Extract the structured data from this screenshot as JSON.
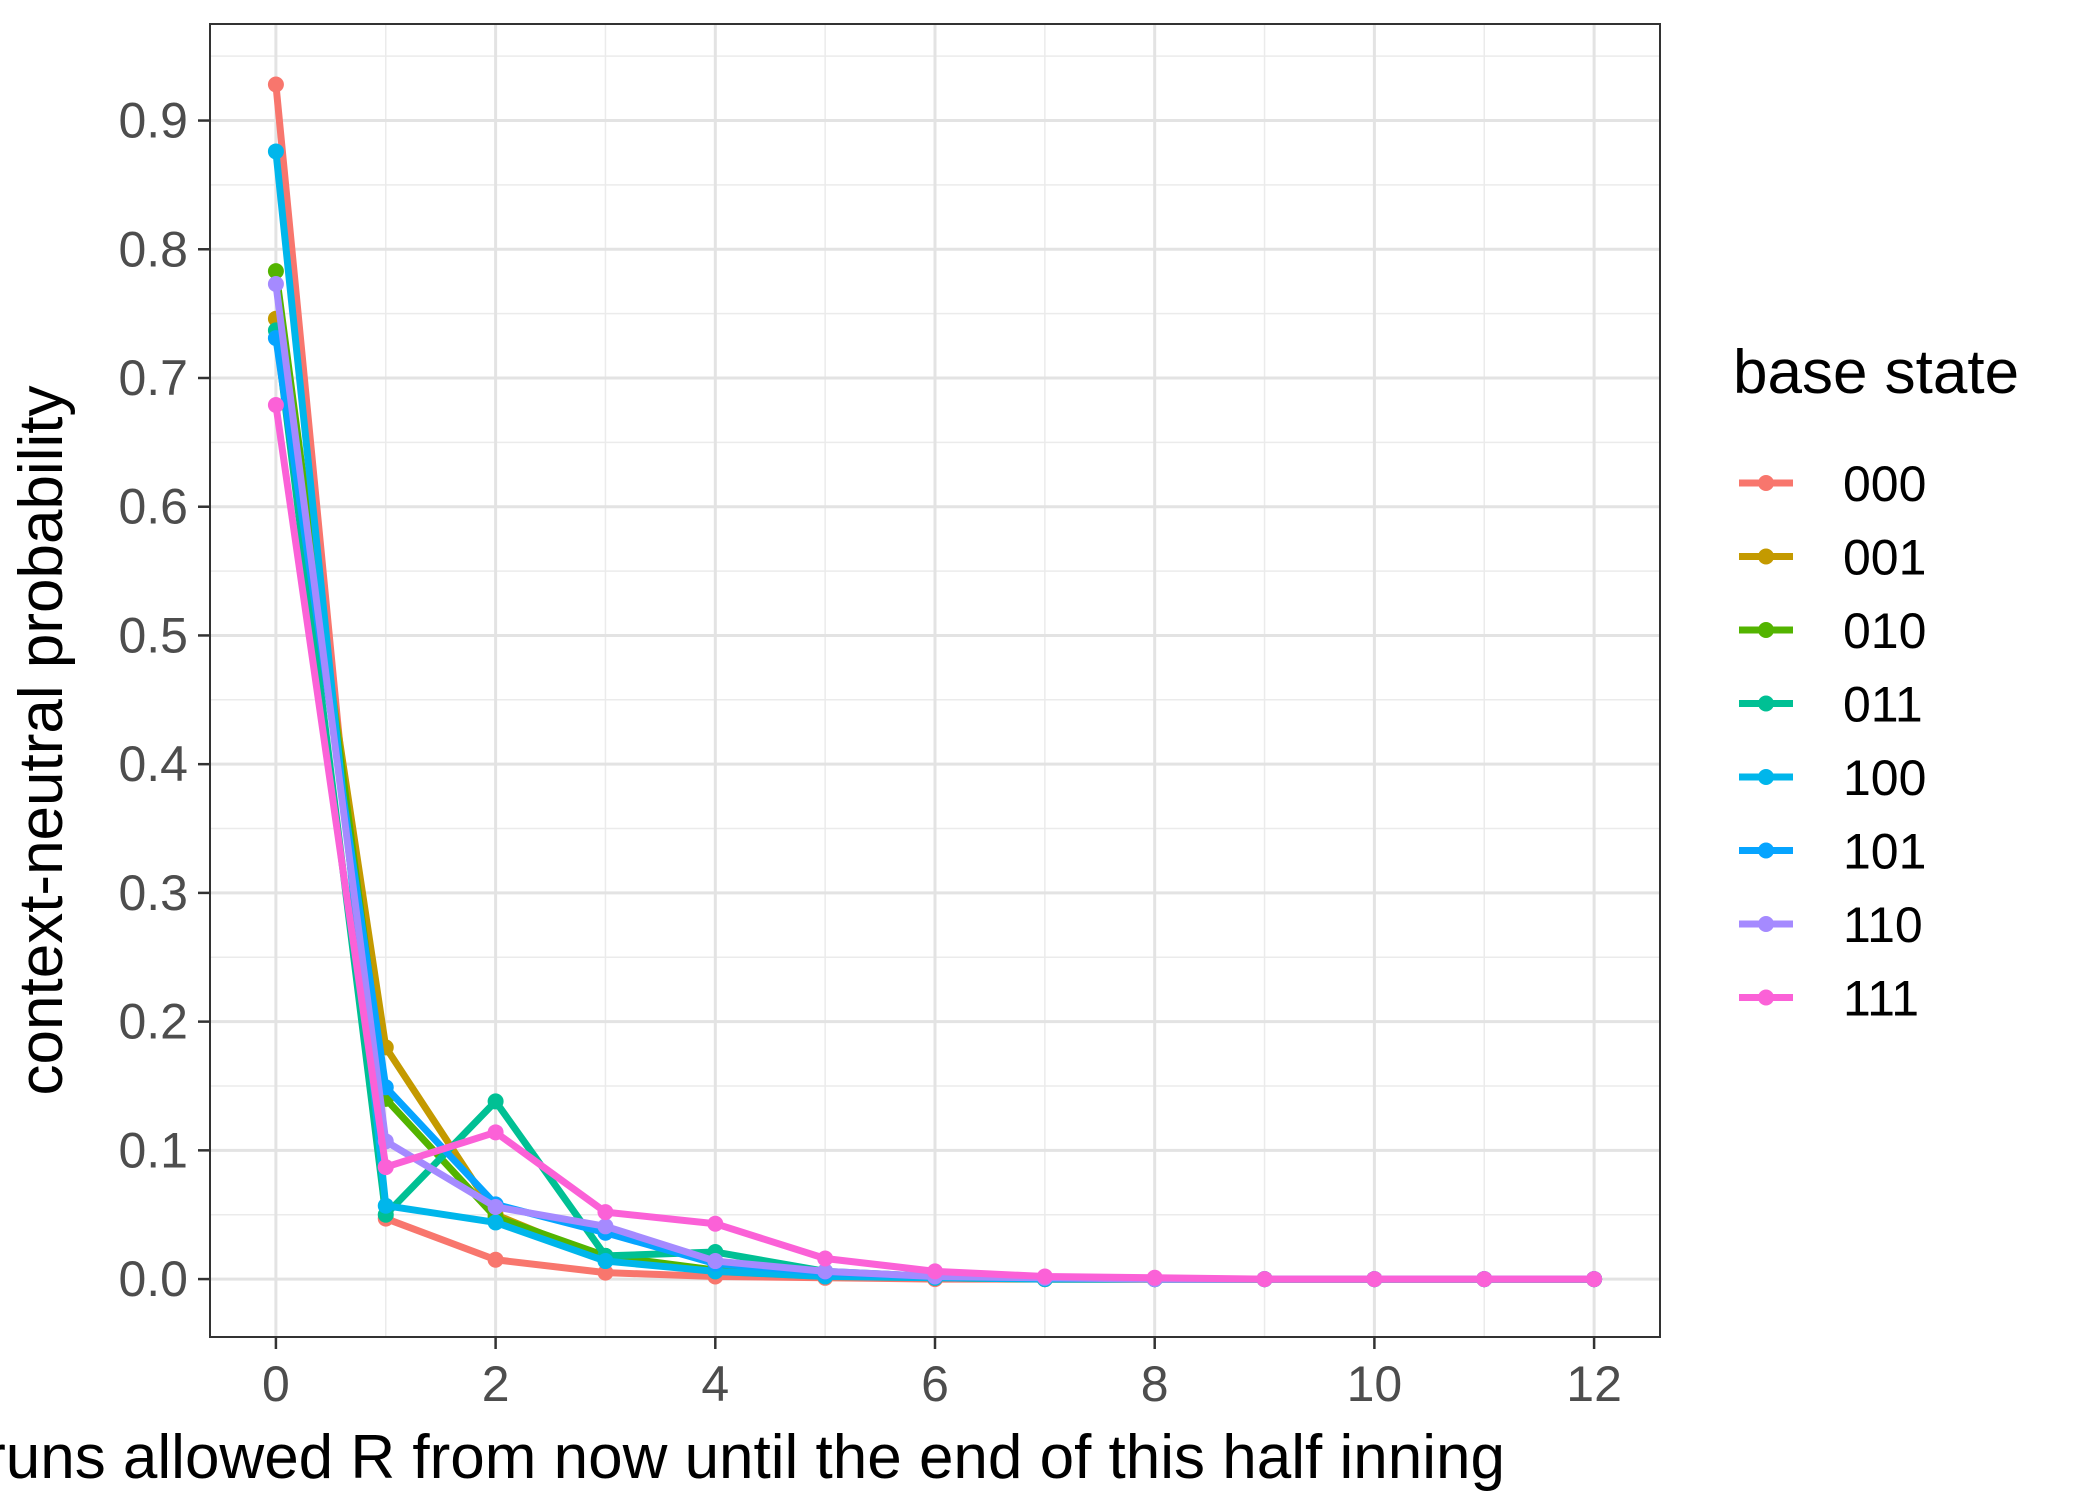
{
  "chart_data": {
    "type": "line",
    "xlabel": "runs allowed R from now until the end of this half inning",
    "ylabel": "context-neutral probability",
    "xlim": [
      -0.6,
      12.6
    ],
    "ylim": [
      -0.045,
      0.975
    ],
    "x_ticks": [
      0,
      2,
      4,
      6,
      8,
      10,
      12
    ],
    "x_tick_labels": [
      "0",
      "2",
      "4",
      "6",
      "8",
      "10",
      "12"
    ],
    "y_ticks": [
      0.0,
      0.1,
      0.2,
      0.3,
      0.4,
      0.5,
      0.6,
      0.7,
      0.8,
      0.9
    ],
    "y_tick_labels": [
      "0.0",
      "0.1",
      "0.2",
      "0.3",
      "0.4",
      "0.5",
      "0.6",
      "0.7",
      "0.8",
      "0.9"
    ],
    "grid": true,
    "legend": {
      "title": "base state",
      "placement": "right"
    },
    "x": [
      0,
      1,
      2,
      3,
      4,
      5,
      6,
      7,
      8,
      9,
      10,
      11,
      12
    ],
    "series": [
      {
        "name": "000",
        "color": "#F8766D",
        "values": [
          0.928,
          0.047,
          0.015,
          0.005,
          0.002,
          0.001,
          0.0,
          0.0,
          0.0,
          0.0,
          0.0,
          0.0,
          0.0
        ]
      },
      {
        "name": "001",
        "color": "#C49A00",
        "values": [
          0.746,
          0.18,
          0.05,
          0.015,
          0.006,
          0.002,
          0.001,
          0.0,
          0.0,
          0.0,
          0.0,
          0.0,
          0.0
        ]
      },
      {
        "name": "010",
        "color": "#53B400",
        "values": [
          0.783,
          0.14,
          0.048,
          0.018,
          0.007,
          0.003,
          0.001,
          0.0,
          0.0,
          0.0,
          0.0,
          0.0,
          0.0
        ]
      },
      {
        "name": "011",
        "color": "#00C094",
        "values": [
          0.737,
          0.05,
          0.138,
          0.018,
          0.021,
          0.006,
          0.002,
          0.001,
          0.0,
          0.0,
          0.0,
          0.0,
          0.0
        ]
      },
      {
        "name": "100",
        "color": "#00B6EB",
        "values": [
          0.876,
          0.057,
          0.044,
          0.014,
          0.006,
          0.002,
          0.001,
          0.0,
          0.0,
          0.0,
          0.0,
          0.0,
          0.0
        ]
      },
      {
        "name": "101",
        "color": "#06A4FF",
        "values": [
          0.731,
          0.149,
          0.058,
          0.036,
          0.012,
          0.005,
          0.002,
          0.001,
          0.0,
          0.0,
          0.0,
          0.0,
          0.0
        ]
      },
      {
        "name": "110",
        "color": "#A58AFF",
        "values": [
          0.773,
          0.107,
          0.056,
          0.041,
          0.014,
          0.006,
          0.002,
          0.001,
          0.0,
          0.0,
          0.0,
          0.0,
          0.0
        ]
      },
      {
        "name": "111",
        "color": "#FB61D7",
        "values": [
          0.679,
          0.087,
          0.114,
          0.052,
          0.043,
          0.016,
          0.006,
          0.002,
          0.001,
          0.0,
          0.0,
          0.0,
          0.0
        ]
      }
    ]
  }
}
